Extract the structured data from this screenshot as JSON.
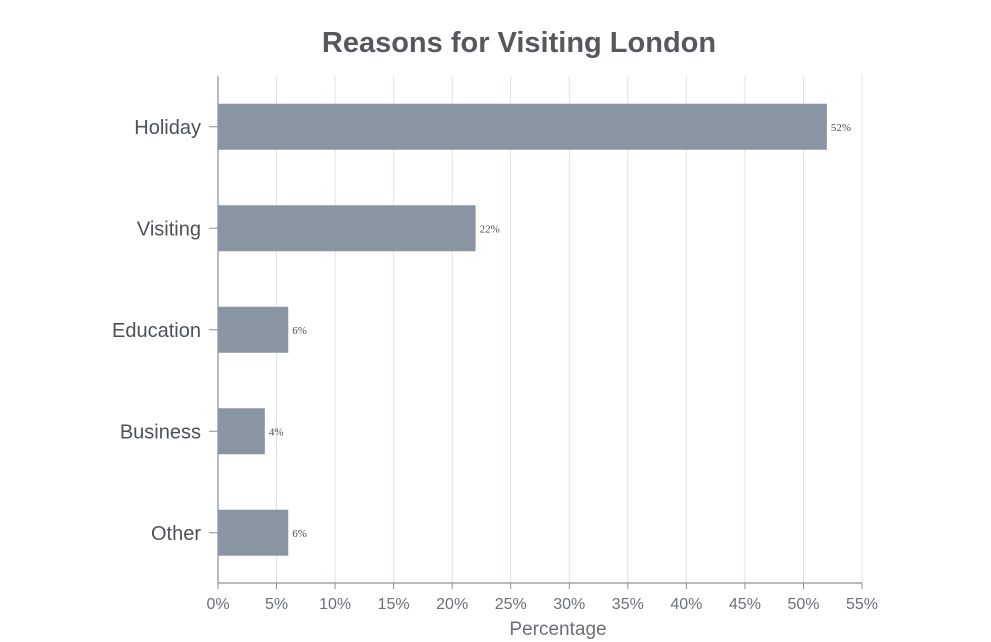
{
  "chart_data": {
    "type": "bar",
    "orientation": "horizontal",
    "title": "Reasons for Visiting London",
    "xlabel": "Percentage",
    "ylabel": "",
    "categories": [
      "Holiday",
      "Visiting",
      "Education",
      "Business",
      "Other"
    ],
    "values": [
      52,
      22,
      6,
      4,
      6
    ],
    "data_labels": [
      "52%",
      "22%",
      "6%",
      "4%",
      "6%"
    ],
    "xlim": [
      0,
      55
    ],
    "xticks": [
      0,
      5,
      10,
      15,
      20,
      25,
      30,
      35,
      40,
      45,
      50,
      55
    ],
    "xtick_labels": [
      "0%",
      "5%",
      "10%",
      "15%",
      "20%",
      "25%",
      "30%",
      "35%",
      "40%",
      "45%",
      "50%",
      "55%"
    ],
    "grid": "vertical",
    "legend": "none",
    "colors": {
      "bar": "#8a95a3",
      "grid": "#d6e6ee",
      "axis": "#8c9096"
    }
  }
}
